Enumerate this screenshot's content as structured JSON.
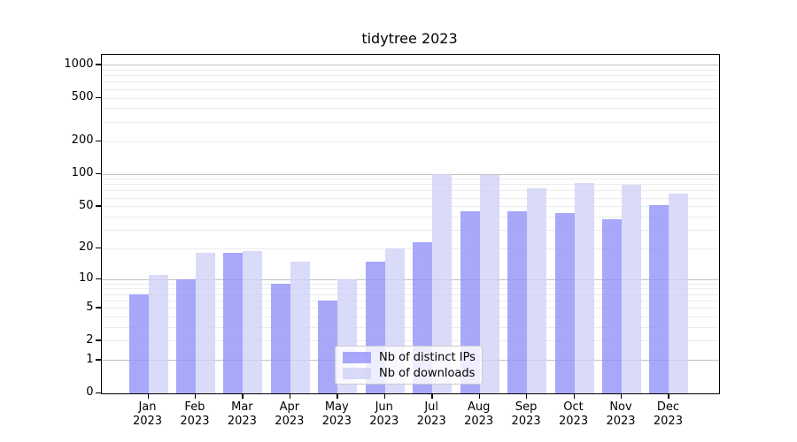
{
  "chart_data": {
    "type": "bar",
    "title": "tidytree 2023",
    "categories": [
      "Jan",
      "Feb",
      "Mar",
      "Apr",
      "May",
      "Jun",
      "Jul",
      "Aug",
      "Sep",
      "Oct",
      "Nov",
      "Dec"
    ],
    "year": "2023",
    "series": [
      {
        "name": "Nb of distinct IPs",
        "color": "rgba(146,146,249,0.8)",
        "color_hex": "#a8a8fa",
        "values": [
          7,
          10,
          18,
          9,
          6,
          15,
          23,
          45,
          45,
          43,
          38,
          51
        ]
      },
      {
        "name": "Nb of downloads",
        "color": "rgba(209,209,247,0.8)",
        "color_hex": "#dadaf8",
        "values": [
          11,
          18,
          19,
          15,
          10,
          20,
          100,
          98,
          73,
          82,
          79,
          65
        ]
      }
    ],
    "yticks": [
      0,
      1,
      2,
      5,
      10,
      20,
      50,
      100,
      200,
      500,
      1000
    ],
    "ytick_labels": [
      "0",
      "1",
      "2",
      "5",
      "10",
      "20",
      "50",
      "100",
      "200",
      "500",
      "1000"
    ],
    "scale": "log10(value+1)",
    "ylim": [
      0,
      1000
    ],
    "grid": "horizontal",
    "legend_position": "bottom-center-inside",
    "axis_color": "#000000",
    "major_grid_color": "#c2c2c2",
    "minor_grid_color": "#ececec"
  }
}
